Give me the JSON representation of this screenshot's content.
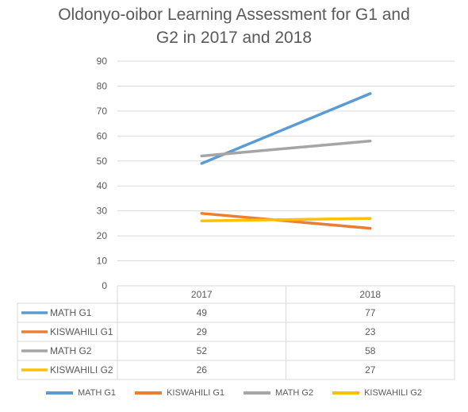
{
  "chart_data": {
    "type": "line",
    "title": [
      "Oldonyo-oibor  Learning Assessment for G1 and",
      "G2 in 2017 and 2018"
    ],
    "categories": [
      "2017",
      "2018"
    ],
    "ylim": [
      0,
      90
    ],
    "yticks": [
      0,
      10,
      20,
      30,
      40,
      50,
      60,
      70,
      80,
      90
    ],
    "grid": true,
    "legend_placement": "bottom",
    "data_table": true,
    "series": [
      {
        "name": "MATH G1",
        "values": [
          49,
          77
        ],
        "color": "#5b9bd5",
        "display": [
          "49",
          "77"
        ]
      },
      {
        "name": "KISWAHILI G1",
        "values": [
          29,
          23
        ],
        "color": "#ed7d31",
        "display": [
          "29",
          "23"
        ]
      },
      {
        "name": "MATH G2",
        "values": [
          52,
          58
        ],
        "color": "#a5a5a5",
        "display": [
          "52",
          "58"
        ]
      },
      {
        "name": "KISWAHILI G2",
        "values": [
          26,
          27
        ],
        "color": "#ffc000",
        "display": [
          "26",
          "27"
        ]
      }
    ]
  }
}
